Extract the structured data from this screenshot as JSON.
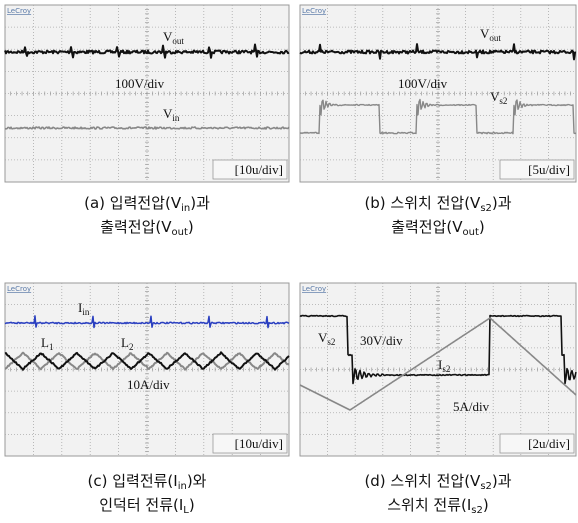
{
  "panels": [
    {
      "brand": "LeCroy",
      "labels": [
        {
          "main": "V",
          "sub": "out"
        },
        {
          "main": "100V/div"
        },
        {
          "main": "V",
          "sub": "in"
        }
      ],
      "timebase": "[10u/div]",
      "caption": [
        [
          {
            "text": "(a) 입력전압(V"
          },
          {
            "sub": "in"
          },
          {
            "text": ")과"
          }
        ],
        [
          {
            "text": "출력전압(V"
          },
          {
            "sub": "out"
          },
          {
            "text": ")"
          }
        ]
      ]
    },
    {
      "brand": "LeCroy",
      "labels": [
        {
          "main": "V",
          "sub": "out"
        },
        {
          "main": "100V/div"
        },
        {
          "main": "V",
          "sub": "s2"
        }
      ],
      "timebase": "[5u/div]",
      "caption": [
        [
          {
            "text": "(b) 스위치 전압(V"
          },
          {
            "sub": "s2"
          },
          {
            "text": ")과"
          }
        ],
        [
          {
            "text": "출력전압(V"
          },
          {
            "sub": "out"
          },
          {
            "text": ")"
          }
        ]
      ]
    },
    {
      "brand": "LeCroy",
      "labels": [
        {
          "main": "I",
          "sub": "in"
        },
        {
          "main": "L",
          "sub": "1"
        },
        {
          "main": "L",
          "sub": "2"
        },
        {
          "main": "10A/div"
        }
      ],
      "timebase": "[10u/div]",
      "caption": [
        [
          {
            "text": "(c) 입력전류(I"
          },
          {
            "sub": "in"
          },
          {
            "text": ")와"
          }
        ],
        [
          {
            "text": "인덕터 전류(I"
          },
          {
            "sub": "L"
          },
          {
            "text": ")"
          }
        ]
      ]
    },
    {
      "brand": "LeCroy",
      "labels": [
        {
          "main": "V",
          "sub": "s2"
        },
        {
          "main": "30V/div"
        },
        {
          "main": "I",
          "sub": "s2"
        },
        {
          "main": "5A/div"
        }
      ],
      "timebase": "[2u/div]",
      "caption": [
        [
          {
            "text": "(d) 스위치 전압(V"
          },
          {
            "sub": "s2"
          },
          {
            "text": ")과"
          }
        ],
        [
          {
            "text": "스위치 전류(I"
          },
          {
            "sub": "s2"
          },
          {
            "text": ")"
          }
        ]
      ]
    }
  ]
}
